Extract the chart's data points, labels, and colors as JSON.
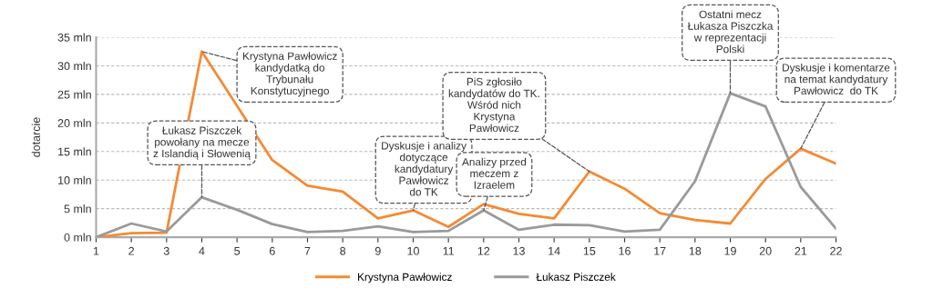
{
  "chart_data": {
    "type": "line",
    "ylabel": "dotarcie",
    "x": [
      1,
      2,
      3,
      4,
      5,
      6,
      7,
      8,
      9,
      10,
      11,
      12,
      13,
      14,
      15,
      16,
      17,
      18,
      19,
      20,
      21,
      22
    ],
    "xlim": [
      1,
      22
    ],
    "xticks": [
      1,
      2,
      3,
      4,
      5,
      6,
      7,
      8,
      9,
      10,
      11,
      12,
      13,
      14,
      15,
      16,
      17,
      18,
      19,
      20,
      21,
      22
    ],
    "ylim": [
      0,
      35
    ],
    "yticks": [
      {
        "value": 0,
        "label": "0 mln"
      },
      {
        "value": 5,
        "label": "5 mln"
      },
      {
        "value": 10,
        "label": "10 mln"
      },
      {
        "value": 15,
        "label": "15 mln"
      },
      {
        "value": 20,
        "label": "20 mln"
      },
      {
        "value": 25,
        "label": "25 mln"
      },
      {
        "value": 30,
        "label": "30 mln"
      },
      {
        "value": 35,
        "label": "35 mln"
      }
    ],
    "grid": "y",
    "legend": "bottom",
    "marker": "none",
    "line_style": "solid",
    "series": [
      {
        "name": "Krystyna Pawłowicz",
        "color": "#f58a33",
        "values": [
          0,
          0.7,
          0.8,
          32.5,
          23,
          13.5,
          9,
          8,
          3.3,
          4.7,
          1.8,
          5.8,
          4.1,
          3.3,
          11.5,
          8.5,
          4.2,
          3,
          2.4,
          10.2,
          15.5,
          12.9
        ]
      },
      {
        "name": "Łukasz Piszczek",
        "color": "#9a9a9a",
        "values": [
          0,
          2.4,
          1,
          7,
          4.8,
          2.3,
          0.9,
          1.1,
          1.9,
          0.9,
          1.1,
          4.7,
          1.3,
          2.2,
          2.1,
          1,
          1.3,
          9.8,
          25.2,
          22.9,
          8.8,
          1.5
        ]
      }
    ],
    "annotations": [
      {
        "text": "Krystyna Pawłowicz\nkandydatką do\nTrybunału\nKonstytucyjnego",
        "x": 4,
        "y": 32.5
      },
      {
        "text": "Łukasz Piszczek\npowołany na mecze\nz Islandią i Słowenią",
        "x": 4,
        "y": 7
      },
      {
        "text": "Dyskusje i analizy\ndotyczące\nkandydatury\nPawłowicz\ndo TK",
        "x": 10,
        "y": 4.7
      },
      {
        "text": "Analizy przed\nmeczem z\nIzraelem",
        "x": 12,
        "y": 4.7
      },
      {
        "text": "PiS zgłosiło\nkandydatów do TK.\nWśród nich\nKrystyna\nPawłowicz",
        "x": 15,
        "y": 11.5
      },
      {
        "text": "Ostatni mecz\nŁukasza Piszczka\nw reprezentacji\nPolski",
        "x": 19,
        "y": 25.2
      },
      {
        "text": "Dyskusje i komentarze\nna temat kandydatury\nPawłowicz  do TK",
        "x": 21,
        "y": 15.5
      }
    ]
  }
}
